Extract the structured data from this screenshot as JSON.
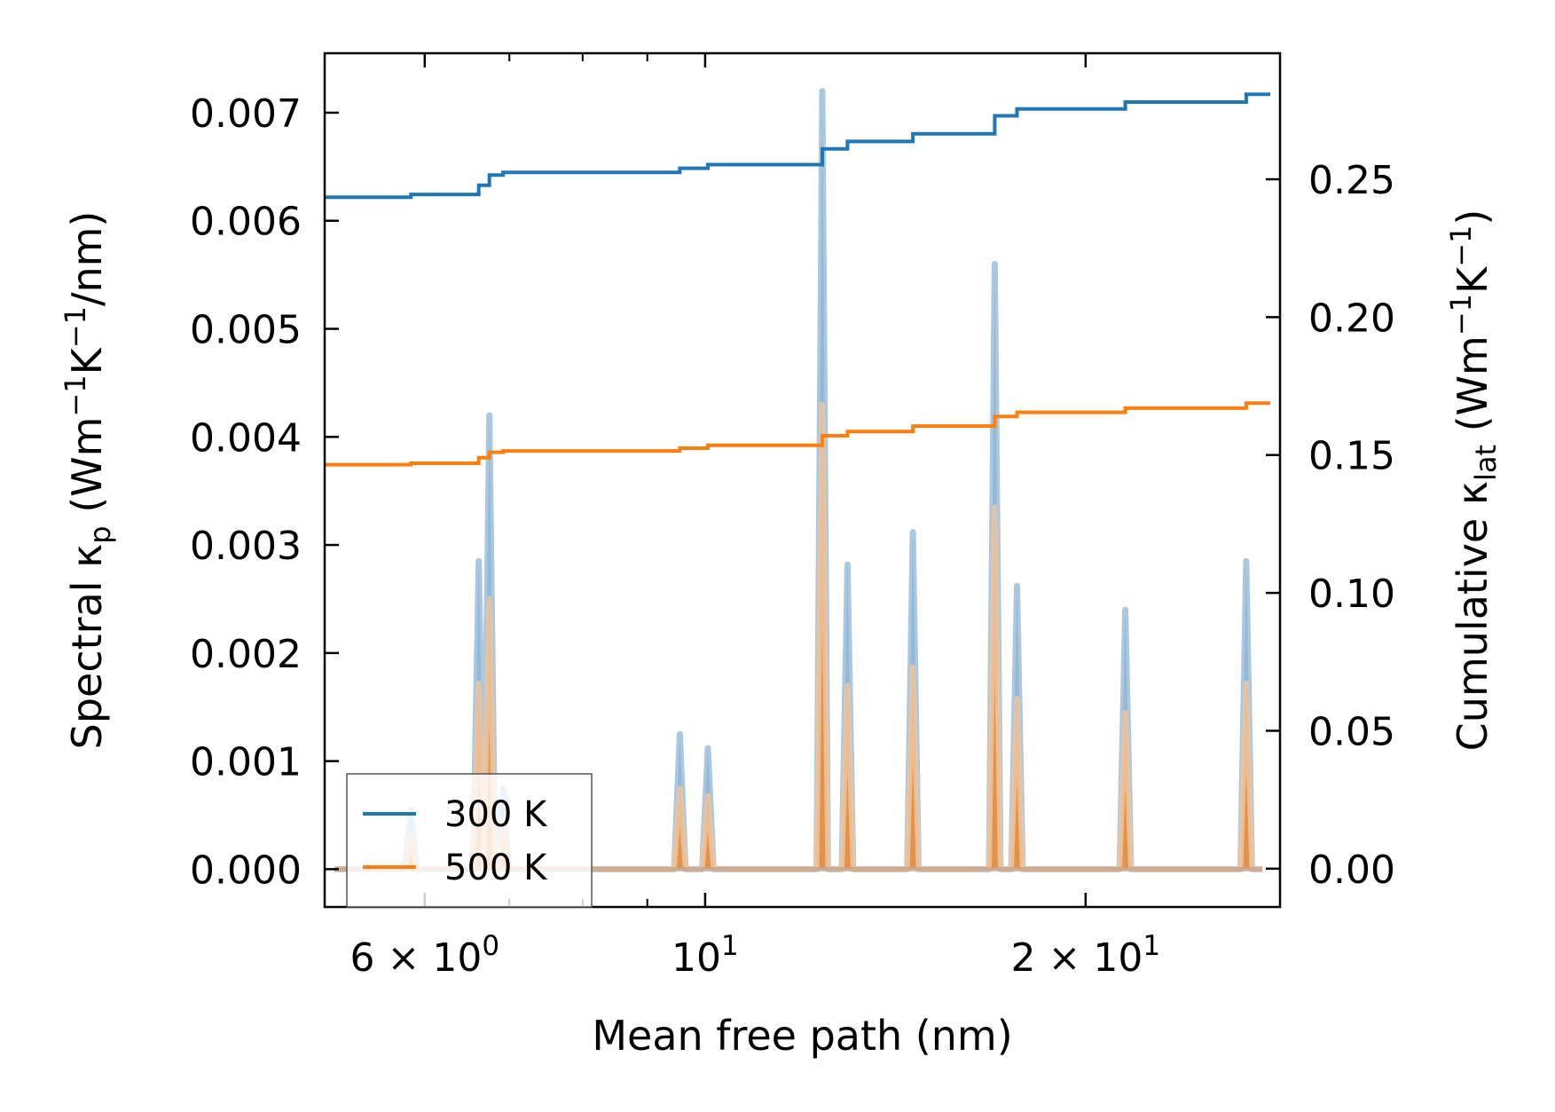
{
  "chart_data": {
    "type": "line",
    "xlabel": "Mean free path (nm)",
    "x_scale": "log",
    "xlim": [
      5.0,
      28.5
    ],
    "x_major_ticks": [
      {
        "value": 6,
        "base": "6",
        "times": "×",
        "mant": "10",
        "exp": "0"
      },
      {
        "value": 10,
        "base": "",
        "times": "",
        "mant": "10",
        "exp": "1"
      },
      {
        "value": 20,
        "base": "2",
        "times": "×",
        "mant": "10",
        "exp": "1"
      }
    ],
    "x_minor_ticks": [
      5,
      7,
      8,
      9
    ],
    "left_axis": {
      "label_main": "Spectral κ",
      "label_sub": "p",
      "label_unit_open": " (Wm",
      "label_unit_e1": "−1",
      "label_unit_mid": "K",
      "label_unit_e2": "−1",
      "label_unit_close": "/nm)",
      "ylim": [
        -0.00035,
        0.00755
      ],
      "ticks": [
        {
          "value": 0.0,
          "label": "0.000"
        },
        {
          "value": 0.001,
          "label": "0.001"
        },
        {
          "value": 0.002,
          "label": "0.002"
        },
        {
          "value": 0.003,
          "label": "0.003"
        },
        {
          "value": 0.004,
          "label": "0.004"
        },
        {
          "value": 0.005,
          "label": "0.005"
        },
        {
          "value": 0.006,
          "label": "0.006"
        },
        {
          "value": 0.007,
          "label": "0.007"
        }
      ]
    },
    "right_axis": {
      "label_main": "Cumulative κ",
      "label_sub": "lat",
      "label_unit_open": " (Wm",
      "label_unit_e1": "−1",
      "label_unit_mid": "K",
      "label_unit_e2": "−1",
      "label_unit_close": ")",
      "ylim": [
        -0.0139,
        0.2957
      ],
      "ticks": [
        {
          "value": 0.0,
          "label": "0.00"
        },
        {
          "value": 0.05,
          "label": "0.05"
        },
        {
          "value": 0.1,
          "label": "0.10"
        },
        {
          "value": 0.15,
          "label": "0.15"
        },
        {
          "value": 0.2,
          "label": "0.20"
        },
        {
          "value": 0.25,
          "label": "0.25"
        }
      ]
    },
    "spectral_peaks": {
      "x": [
        5.85,
        6.62,
        6.75,
        6.92,
        9.55,
        10.05,
        12.38,
        12.96,
        14.6,
        16.95,
        17.65,
        21.5,
        26.8
      ],
      "300 K": [
        0.00055,
        0.00285,
        0.0042,
        0.00075,
        0.00125,
        0.00112,
        0.0072,
        0.00282,
        0.00312,
        0.0056,
        0.00262,
        0.0024,
        0.00285
      ],
      "500 K": [
        0.00032,
        0.00172,
        0.0025,
        0.00045,
        0.00075,
        0.00068,
        0.0043,
        0.0017,
        0.00187,
        0.00335,
        0.00158,
        0.00145,
        0.00172
      ]
    },
    "series": [
      {
        "name": "300 K",
        "color": "#1f77b4",
        "cumulative_x": [
          5.0,
          5.85,
          6.62,
          6.75,
          6.92,
          9.55,
          10.05,
          12.38,
          12.96,
          14.6,
          16.95,
          17.65,
          21.5,
          26.8,
          28.0
        ],
        "cumulative_y": [
          0.2435,
          0.2445,
          0.2478,
          0.2515,
          0.2525,
          0.254,
          0.2553,
          0.261,
          0.2637,
          0.2665,
          0.273,
          0.2755,
          0.278,
          0.2808,
          0.2808
        ]
      },
      {
        "name": "500 K",
        "color": "#ff7f0e",
        "cumulative_x": [
          5.0,
          5.85,
          6.62,
          6.75,
          6.92,
          9.55,
          10.05,
          12.38,
          12.96,
          14.6,
          16.95,
          17.65,
          21.5,
          26.8,
          28.0
        ],
        "cumulative_y": [
          0.1465,
          0.147,
          0.149,
          0.151,
          0.1515,
          0.1525,
          0.1535,
          0.157,
          0.1585,
          0.1605,
          0.164,
          0.1655,
          0.167,
          0.1688,
          0.1688
        ]
      }
    ],
    "legend": {
      "position": "lower-left",
      "entries": [
        "300 K",
        "500 K"
      ]
    }
  }
}
